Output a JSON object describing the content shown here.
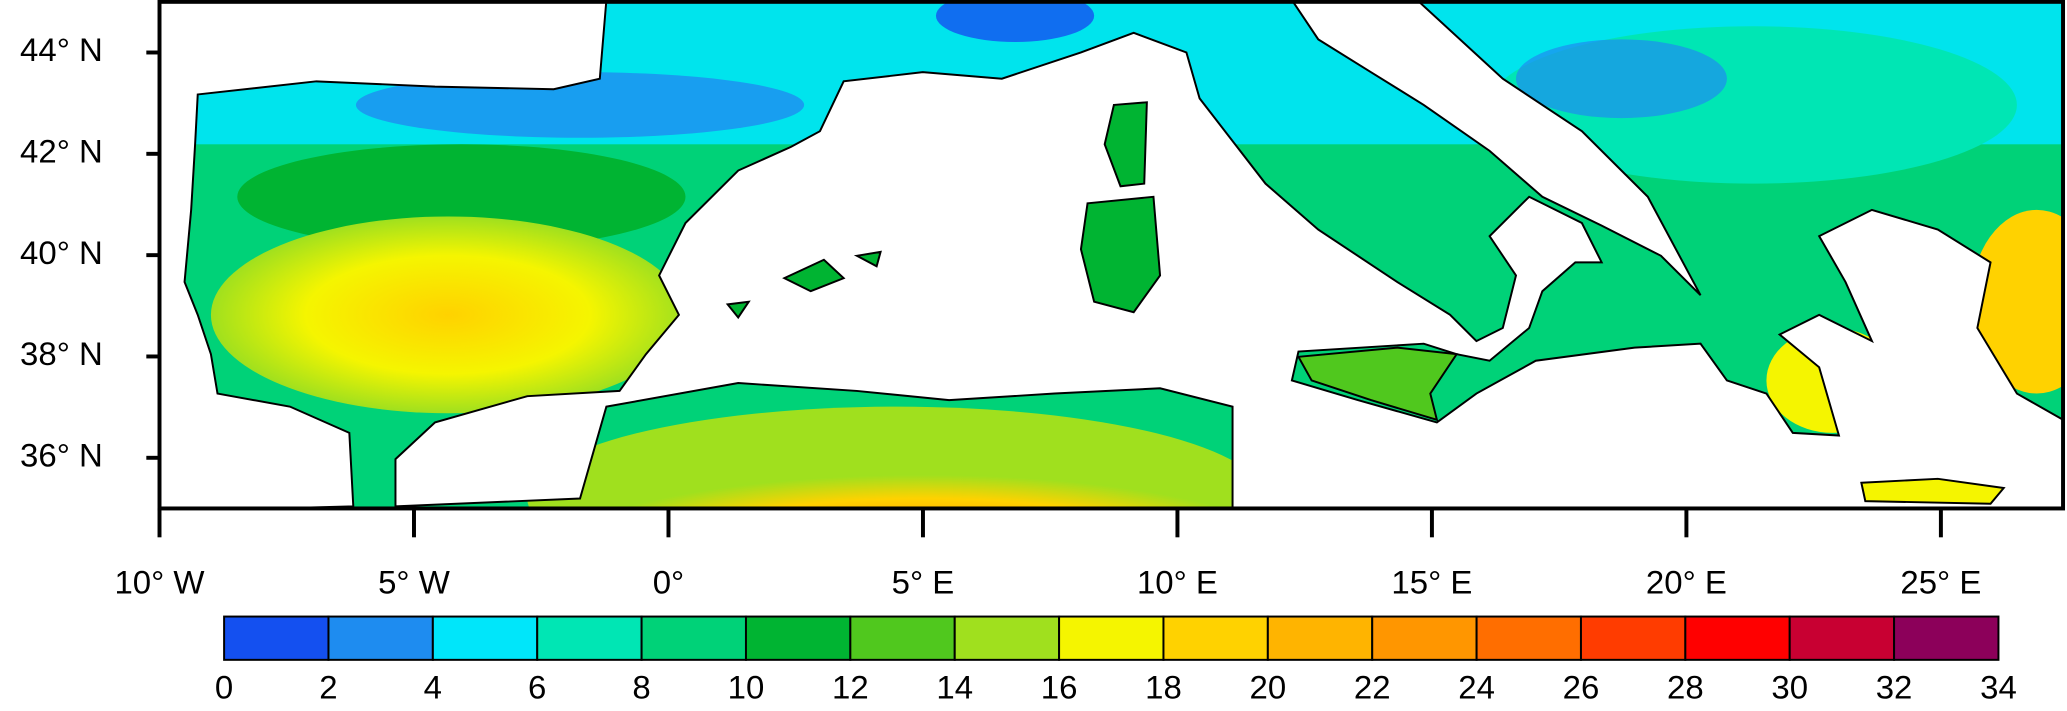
{
  "map": {
    "xlim": [
      -10,
      27.4
    ],
    "ylim": [
      35,
      45
    ],
    "xticks": [
      {
        "value": -10,
        "label": "10° W"
      },
      {
        "value": -5,
        "label": "5° W"
      },
      {
        "value": 0,
        "label": "0°"
      },
      {
        "value": 5,
        "label": "5° E"
      },
      {
        "value": 10,
        "label": "10° E"
      },
      {
        "value": 15,
        "label": "15° E"
      },
      {
        "value": 20,
        "label": "20° E"
      },
      {
        "value": 25,
        "label": "25° E"
      }
    ],
    "yticks": [
      {
        "value": 44,
        "label": "44° N"
      },
      {
        "value": 42,
        "label": "42° N"
      },
      {
        "value": 40,
        "label": "40° N"
      },
      {
        "value": 38,
        "label": "38° N"
      },
      {
        "value": 36,
        "label": "36° N"
      }
    ],
    "colorbar": {
      "bounds": [
        0,
        2,
        4,
        6,
        8,
        10,
        12,
        14,
        16,
        18,
        20,
        22,
        24,
        26,
        28,
        30,
        32,
        34
      ],
      "colors": [
        "#1450f0",
        "#1e8cf0",
        "#00e6fa",
        "#00e6b4",
        "#00d278",
        "#00b432",
        "#50c81e",
        "#a0e01e",
        "#f5f500",
        "#ffd200",
        "#ffb400",
        "#ff9600",
        "#ff6e00",
        "#ff3c00",
        "#ff0000",
        "#c80032",
        "#8c005a"
      ]
    }
  }
}
